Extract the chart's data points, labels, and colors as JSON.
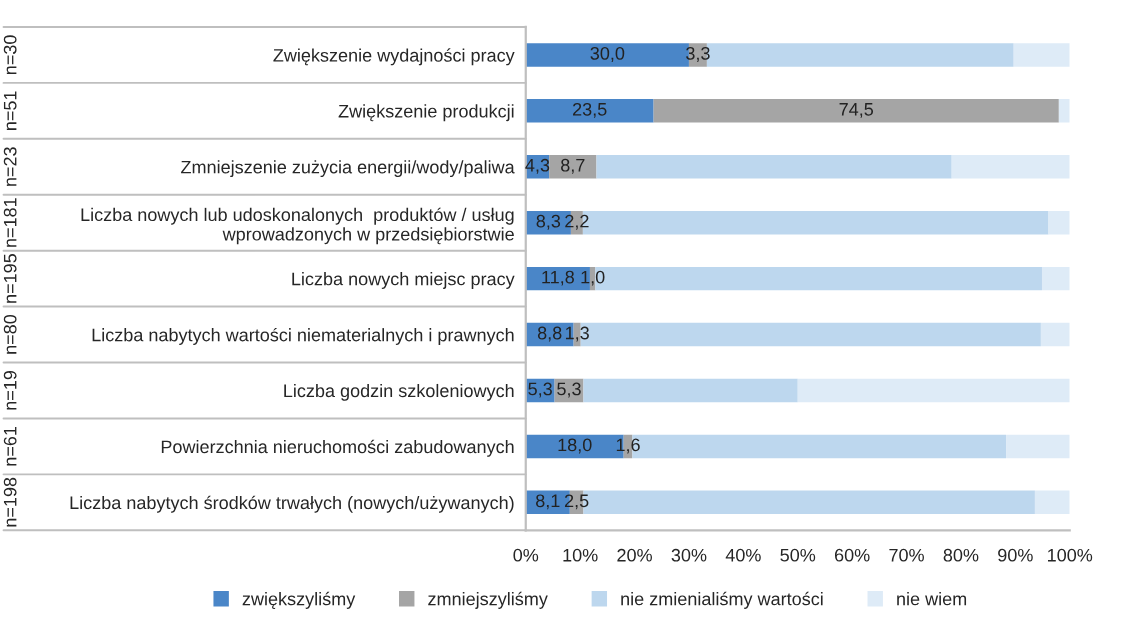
{
  "chart_data": {
    "type": "bar",
    "orientation": "horizontal",
    "stacked": true,
    "categories": [
      "Zwiększenie wydajności pracy",
      "Zwiększenie produkcji",
      "Zmniejszenie zużycia energii/wody/paliwa",
      "Liczba nowych lub udoskonalonych  produktów / usług\nwprowadzonych w przedsiębiorstwie",
      "Liczba nowych miejsc pracy",
      "Liczba nabytych wartości niematerialnych i prawnych",
      "Liczba godzin szkoleniowych",
      "Powierzchnia nieruchomości zabudowanych",
      "Liczba nabytych środków trwałych (nowych/używanych)"
    ],
    "series": [
      {
        "name": "zwiększyliśmy",
        "color": "#4a86c8",
        "values": [
          30.0,
          23.5,
          4.3,
          8.3,
          11.8,
          8.8,
          5.3,
          18.0,
          8.1
        ],
        "value_labels": [
          "30,0",
          "23,5",
          "4,3",
          "8,3",
          "11,8",
          "8,8",
          "5,3",
          "18,0",
          "8,1"
        ]
      },
      {
        "name": "zmniejszyliśmy",
        "color": "#a5a5a5",
        "values": [
          3.3,
          74.5,
          8.7,
          2.2,
          1.0,
          1.3,
          5.3,
          1.6,
          2.5
        ],
        "value_labels": [
          "3,3",
          "74,5",
          "8,7",
          "2,2",
          "1,0",
          "1,3",
          "5,3",
          "1,6",
          "2,5"
        ]
      },
      {
        "name": "nie zmienialiśmy wartości",
        "color": "#bdd7ee",
        "values": [
          56.4,
          0,
          65.3,
          85.6,
          82.1,
          84.6,
          39.4,
          68.7,
          83.0
        ]
      },
      {
        "name": "nie wiem",
        "color": "#deebf7",
        "values": [
          10.3,
          2.0,
          21.7,
          3.9,
          5.1,
          5.3,
          50.0,
          11.7,
          6.4
        ]
      }
    ],
    "xlim": [
      0,
      100
    ],
    "xticks": [
      {
        "value": 0,
        "label": "0%"
      },
      {
        "value": 10,
        "label": "10%"
      },
      {
        "value": 20,
        "label": "20%"
      },
      {
        "value": 30,
        "label": "30%"
      },
      {
        "value": 40,
        "label": "40%"
      },
      {
        "value": 50,
        "label": "50%"
      },
      {
        "value": 60,
        "label": "60%"
      },
      {
        "value": 70,
        "label": "70%"
      },
      {
        "value": 80,
        "label": "80%"
      },
      {
        "value": 90,
        "label": "90%"
      },
      {
        "value": 100,
        "label": "100%"
      }
    ],
    "annotations": [
      "n=30",
      "n=51",
      "n=23",
      "n=181",
      "n=195",
      "n=80",
      "n=19",
      "n=61",
      "n=198"
    ],
    "grid": false,
    "legend": "bottom"
  }
}
